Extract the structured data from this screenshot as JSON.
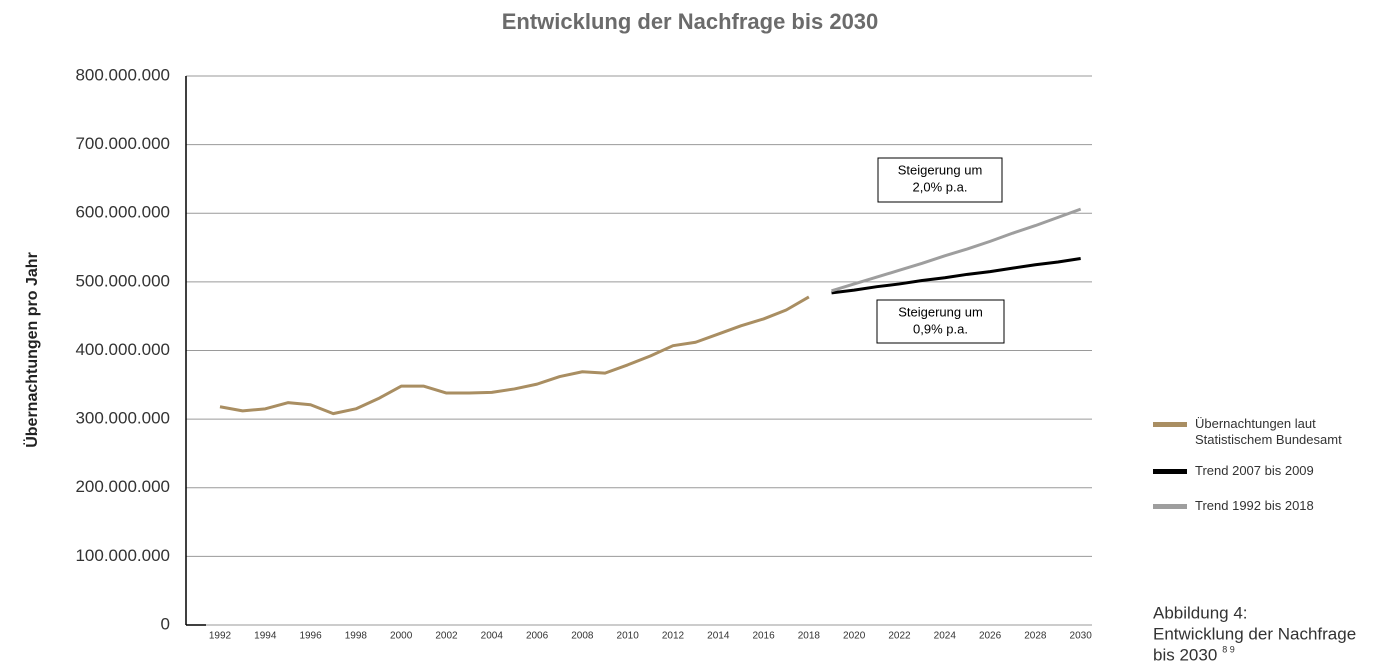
{
  "chart_data": {
    "type": "line",
    "title": "Entwicklung der Nachfrage bis 2030",
    "ylabel": "Übernachtungen pro Jahr",
    "series": [
      {
        "name": "Übernachtungen laut Statistischem Bundesamt",
        "color": "#a98e62",
        "x": [
          1992,
          1993,
          1994,
          1995,
          1996,
          1997,
          1998,
          1999,
          2000,
          2001,
          2002,
          2003,
          2004,
          2005,
          2006,
          2007,
          2008,
          2009,
          2010,
          2011,
          2012,
          2013,
          2014,
          2015,
          2016,
          2017,
          2018
        ],
        "values": [
          318000000,
          312000000,
          315000000,
          324000000,
          321000000,
          308000000,
          315000000,
          330000000,
          348000000,
          348000000,
          338000000,
          338000000,
          339000000,
          344000000,
          351000000,
          362000000,
          369000000,
          367000000,
          379000000,
          392000000,
          407000000,
          412000000,
          424000000,
          436000000,
          446000000,
          459000000,
          478000000
        ]
      },
      {
        "name": "Trend 2007 bis 2009",
        "color": "#000000",
        "x": [
          2019,
          2020,
          2021,
          2022,
          2023,
          2024,
          2025,
          2026,
          2027,
          2028,
          2029,
          2030
        ],
        "values": [
          484000000,
          488000000,
          493000000,
          497000000,
          502000000,
          506000000,
          511000000,
          515000000,
          520000000,
          525000000,
          529000000,
          534000000
        ]
      },
      {
        "name": "Trend 1992 bis 2018",
        "color": "#9e9e9e",
        "x": [
          2019,
          2020,
          2021,
          2022,
          2023,
          2024,
          2025,
          2026,
          2027,
          2028,
          2029,
          2030
        ],
        "values": [
          487000000,
          497000000,
          507000000,
          517000000,
          527000000,
          538000000,
          548000000,
          559000000,
          571000000,
          582000000,
          594000000,
          606000000
        ]
      }
    ],
    "xlim": [
      1990.5,
      2030.5
    ],
    "xticks": [
      1992,
      1994,
      1996,
      1998,
      2000,
      2002,
      2004,
      2006,
      2008,
      2010,
      2012,
      2014,
      2016,
      2018,
      2020,
      2022,
      2024,
      2026,
      2028,
      2030
    ],
    "ylim": [
      0,
      800000000
    ],
    "yticks": [
      0,
      {
        "value": 100000000,
        "label": "100.000.000"
      },
      {
        "value": 200000000,
        "label": "200.000.000"
      },
      {
        "value": 300000000,
        "label": "300.000.000"
      },
      {
        "value": 400000000,
        "label": "400.000.000"
      },
      {
        "value": 500000000,
        "label": "500.000.000"
      },
      {
        "value": 600000000,
        "label": "600.000.000"
      },
      {
        "value": 700000000,
        "label": "700.000.000"
      },
      {
        "value": 800000000,
        "label": "800.000.000"
      }
    ],
    "grid": true,
    "annotations": [
      {
        "lines": [
          "Steigerung um",
          "2,0% p.a."
        ]
      },
      {
        "lines": [
          "Steigerung um",
          "0,9% p.a."
        ]
      }
    ],
    "legend": "right",
    "caption": {
      "lines": [
        "Abbildung 4:",
        "Entwicklung der Nachfrage",
        "bis 2030"
      ],
      "footnote": "8 9"
    }
  }
}
